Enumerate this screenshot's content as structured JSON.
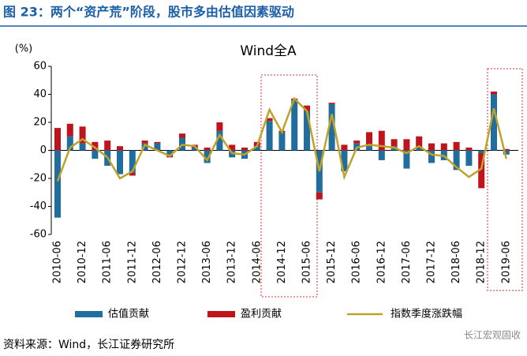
{
  "header": {
    "title": "图 23：两个“资产荒”阶段，股市多由估值因素驱动"
  },
  "chart_data": {
    "type": "bar_line",
    "title": "Wind全A",
    "y_label": "(%)",
    "categories": [
      "2010-06",
      null,
      "2010-12",
      null,
      "2011-06",
      null,
      "2011-12",
      null,
      "2012-06",
      null,
      "2012-12",
      null,
      "2013-06",
      null,
      "2013-12",
      null,
      "2014-06",
      null,
      "2014-12",
      null,
      "2015-06",
      null,
      "2015-12",
      null,
      "2016-06",
      null,
      "2016-12",
      null,
      "2017-06",
      null,
      "2017-12",
      null,
      "2018-06",
      null,
      "2018-12",
      null,
      "2019-06"
    ],
    "series": [
      {
        "name": "估值贡献",
        "type": "bar",
        "color": "#1f6e9e",
        "values": [
          -48,
          10,
          5,
          -6,
          -11,
          -17,
          -16,
          5,
          5,
          -4,
          9,
          2,
          -9,
          14,
          -5,
          -6,
          3,
          21,
          13,
          36,
          28,
          -30,
          33,
          -15,
          5,
          3,
          -7,
          3,
          -13,
          2,
          -9,
          -7,
          -14,
          -11,
          -2,
          40,
          -3
        ]
      },
      {
        "name": "盈利贡献",
        "type": "bar",
        "color": "#c0141c",
        "values": [
          16,
          9,
          12,
          6,
          7,
          3,
          -2,
          2,
          1,
          -1,
          3,
          2,
          2,
          6,
          4,
          2,
          3,
          2,
          1,
          1,
          4,
          -5,
          1,
          4,
          2,
          10,
          14,
          5,
          8,
          8,
          5,
          5,
          6,
          2,
          -25,
          2,
          1
        ]
      },
      {
        "name": "指数季度涨跌幅",
        "type": "line",
        "color": "#bfa22a",
        "values": [
          -22,
          2,
          8,
          2,
          -5,
          -20,
          -15,
          4,
          0,
          -4,
          4,
          3,
          -7,
          11,
          -2,
          -3,
          3,
          29,
          13,
          37,
          28,
          -15,
          26,
          -19,
          2,
          4,
          3,
          2,
          -2,
          3,
          -3,
          -4,
          -12,
          -19,
          -13,
          30,
          -6
        ]
      }
    ],
    "ylim": [
      -60,
      60
    ],
    "yticks": [
      -60,
      -40,
      -20,
      0,
      20,
      40,
      60
    ]
  },
  "source": "资料来源：Wind，长江证券研究所",
  "watermark": "长江宏观固收"
}
